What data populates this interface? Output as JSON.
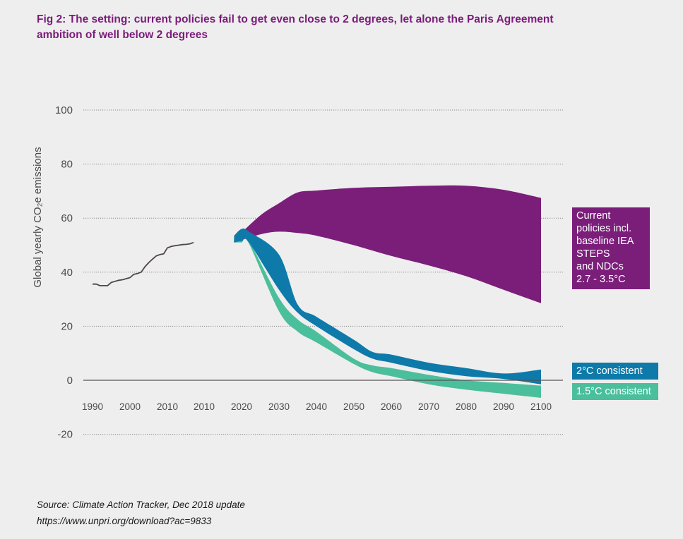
{
  "header": {
    "title_line1": "Fig 2: The setting: current policies fail to get even close to 2 degrees, let alone the Paris Agreement",
    "title_line2": "ambition of well below 2 degrees"
  },
  "chart_data": {
    "type": "area",
    "ylabel": "Global yearly CO₂e emissions",
    "ylim": [
      -20,
      100
    ],
    "yticks": [
      100,
      80,
      60,
      40,
      20,
      0,
      -20
    ],
    "xticks": [
      "1990",
      "2000",
      "2010",
      "2010",
      "2020",
      "2030",
      "2040",
      "2050",
      "2060",
      "2070",
      "2080",
      "2090",
      "2100"
    ],
    "grid": true,
    "historical": {
      "x": [
        1990,
        1991,
        1992,
        1993,
        1994,
        1995,
        1996,
        1997,
        1998,
        1999,
        2000,
        2001,
        2002,
        2003,
        2004,
        2005,
        2006,
        2007,
        2008,
        2009,
        2010,
        2011,
        2012,
        2013,
        2014,
        2015,
        2016,
        2017
      ],
      "y": [
        35.6,
        35.6,
        35.0,
        35.0,
        35.0,
        36.2,
        36.6,
        37.0,
        37.2,
        37.6,
        38.0,
        39.2,
        39.5,
        40.0,
        42.0,
        43.5,
        44.8,
        46.0,
        46.5,
        46.8,
        49.0,
        49.5,
        49.8,
        50.0,
        50.2,
        50.3,
        50.5,
        51.0
      ]
    },
    "series": [
      {
        "name": "Current policies incl. baseline IEA STEPS and NDCs 2.7 - 3.5°C",
        "color": "#7b1e7a",
        "x": [
          2018,
          2025,
          2030,
          2035,
          2040,
          2050,
          2060,
          2070,
          2080,
          2090,
          2100
        ],
        "upper": [
          52,
          61,
          65.5,
          69.5,
          70.2,
          71.2,
          71.6,
          72.0,
          72.0,
          70.5,
          67.5
        ],
        "lower": [
          51,
          54,
          55,
          54.5,
          53.5,
          50,
          46,
          42.5,
          38.5,
          33.5,
          28.5
        ]
      },
      {
        "name": "2°C consistent",
        "color": "#0e7aaa",
        "x": [
          2018,
          2020,
          2022,
          2030,
          2035,
          2040,
          2050,
          2055,
          2060,
          2070,
          2080,
          2090,
          2100
        ],
        "upper": [
          53.5,
          56.0,
          55.0,
          46.5,
          28.0,
          23.5,
          15.0,
          10.5,
          9.5,
          6.5,
          4.5,
          2.5,
          4.0
        ],
        "lower": [
          51.0,
          51.5,
          51.0,
          33.5,
          25.0,
          20.0,
          11.5,
          8.0,
          6.5,
          3.5,
          1.5,
          0.5,
          -1.5
        ]
      },
      {
        "name": "1.5°C consistent",
        "color": "#4bbf9b",
        "x": [
          2018,
          2020,
          2022,
          2030,
          2035,
          2040,
          2050,
          2055,
          2060,
          2070,
          2080,
          2090,
          2100
        ],
        "upper": [
          51.5,
          52.0,
          51.5,
          30.5,
          22.5,
          18.0,
          8.0,
          5.5,
          4.5,
          2.0,
          0.0,
          -1.0,
          -2.0
        ],
        "lower": [
          51.0,
          51.0,
          50.5,
          25.5,
          18.0,
          14.0,
          6.0,
          3.0,
          1.5,
          -1.5,
          -3.5,
          -5.0,
          -6.5
        ]
      }
    ],
    "legend": {
      "current_lines": [
        "Current",
        "policies incl.",
        "baseline IEA",
        "STEPS",
        "and NDCs",
        "2.7 - 3.5°C"
      ],
      "two_c": "2°C consistent",
      "one_five_c": "1.5°C consistent"
    }
  },
  "footer": {
    "source": "Source: Climate Action Tracker, Dec 2018 update",
    "url": "https://www.unpri.org/download?ac=9833"
  }
}
